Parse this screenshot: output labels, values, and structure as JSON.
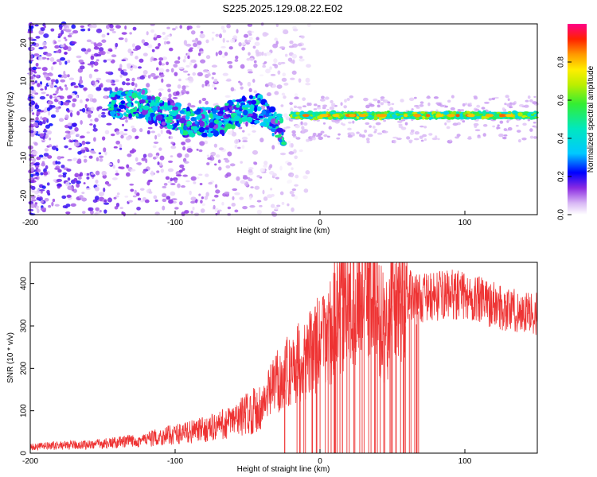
{
  "title": "S225.2025.129.08.22.E02",
  "chart_data": [
    {
      "type": "heatmap",
      "xlabel": "Height of straight line (km)",
      "ylabel": "Frequency (Hz)",
      "xlim": [
        -200,
        150
      ],
      "ylim": [
        -25,
        25
      ],
      "xticks": [
        -200,
        -100,
        0,
        100
      ],
      "yticks": [
        -20,
        -10,
        0,
        10,
        20
      ],
      "colorbar": {
        "label": "Normalized spectral amplitude",
        "range": [
          0,
          1
        ],
        "ticks": [
          "0.0",
          "0.2",
          "0.4",
          "0.6",
          "0.8"
        ]
      },
      "features": [
        {
          "name": "narrow line",
          "x_range": [
            -20,
            150
          ],
          "frequency": 1,
          "peak_amplitude": 0.9
        },
        {
          "name": "wandering signal",
          "x_range": [
            -145,
            -25
          ],
          "frequency_range": [
            -5,
            8
          ],
          "peak_amplitude": 0.45
        },
        {
          "name": "noise",
          "x_range": [
            -200,
            -30
          ],
          "frequency_range": [
            -25,
            25
          ],
          "peak_amplitude": 0.15
        }
      ]
    },
    {
      "type": "line",
      "xlabel": "Height of straight line (km)",
      "ylabel": "SNR (10 * v/v)",
      "xlim": [
        -200,
        150
      ],
      "ylim": [
        0,
        450
      ],
      "xticks": [
        -200,
        -100,
        0,
        100
      ],
      "yticks": [
        0,
        100,
        200,
        300,
        400
      ],
      "series": [
        {
          "color": "#ee3333",
          "x": [
            -200,
            -180,
            -160,
            -140,
            -120,
            -100,
            -80,
            -70,
            -60,
            -50,
            -40,
            -35,
            -30,
            -25,
            -20,
            -15,
            -10,
            -5,
            0,
            5,
            10,
            15,
            20,
            25,
            30,
            35,
            40,
            45,
            50,
            55,
            60,
            65,
            70,
            80,
            90,
            100,
            110,
            120,
            130,
            140,
            150
          ],
          "y": [
            15,
            18,
            20,
            25,
            32,
            45,
            55,
            65,
            75,
            95,
            110,
            140,
            170,
            180,
            200,
            215,
            225,
            240,
            260,
            280,
            300,
            330,
            360,
            380,
            385,
            380,
            340,
            280,
            355,
            365,
            375,
            370,
            365,
            370,
            375,
            370,
            360,
            350,
            340,
            330,
            330
          ]
        }
      ],
      "peak": {
        "x": 10,
        "y": 450
      }
    }
  ]
}
